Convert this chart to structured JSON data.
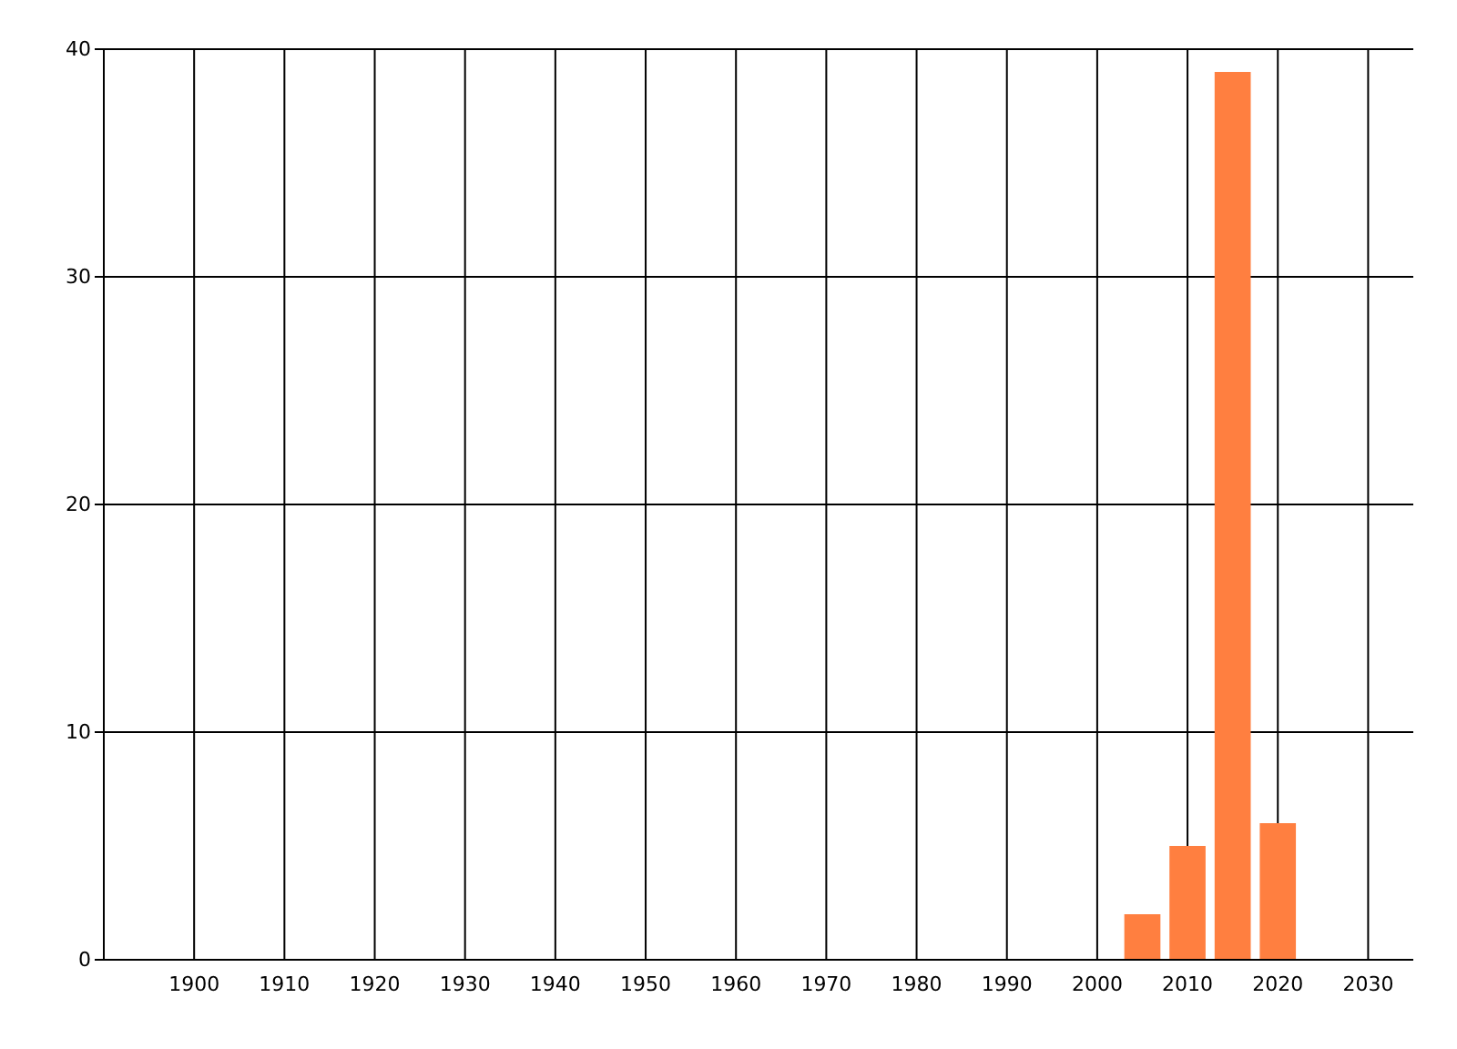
{
  "chart_data": {
    "type": "bar",
    "x": [
      2005,
      2010,
      2015,
      2020
    ],
    "values": [
      2,
      5,
      39,
      6
    ],
    "color": "#ff7f40",
    "xlim": [
      1890,
      2035
    ],
    "xticks": [
      1900,
      1910,
      1920,
      1930,
      1940,
      1950,
      1960,
      1970,
      1980,
      1990,
      2000,
      2010,
      2020,
      2030
    ],
    "ylim": [
      0,
      40
    ],
    "yticks": [
      0,
      10,
      20,
      30,
      40
    ],
    "grid": true
  }
}
